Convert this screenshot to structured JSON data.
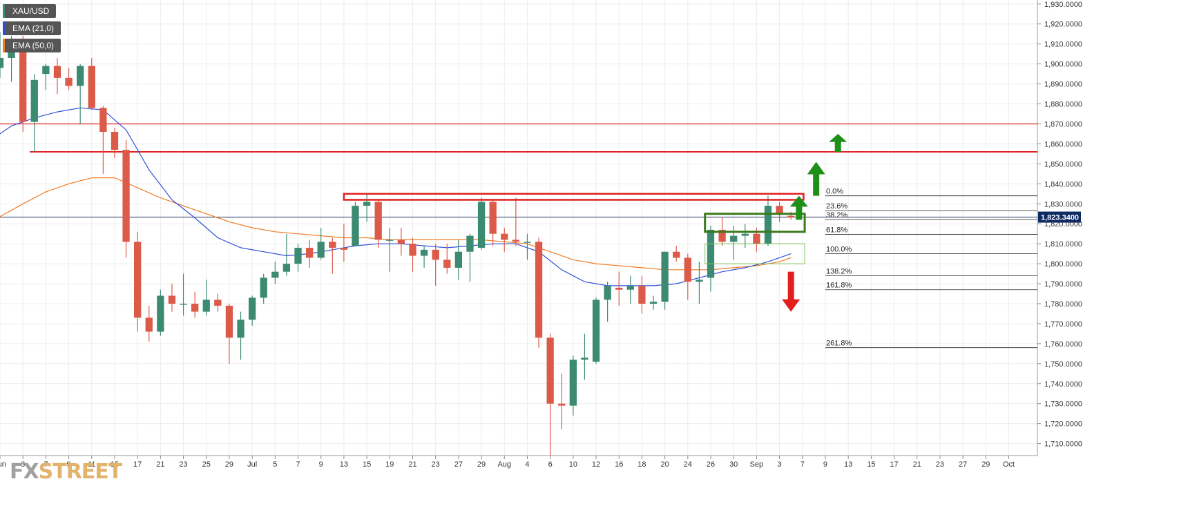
{
  "chart_data": {
    "type": "candlestick",
    "symbol": "XAU/USD",
    "indicators": [
      {
        "name": "EMA (21,0)",
        "color": "#2e4fd8"
      },
      {
        "name": "EMA (50,0)",
        "color": "#f07a22"
      }
    ],
    "ylim": [
      1704,
      1932
    ],
    "y_ticks": [
      "1,930.0000",
      "1,920.0000",
      "1,910.0000",
      "1,900.0000",
      "1,890.0000",
      "1,880.0000",
      "1,870.0000",
      "1,860.0000",
      "1,850.0000",
      "1,840.0000",
      "1,830.0000",
      "1,820.0000",
      "1,810.0000",
      "1,800.0000",
      "1,790.0000",
      "1,780.0000",
      "1,770.0000",
      "1,760.0000",
      "1,750.0000",
      "1,740.0000",
      "1,730.0000",
      "1,720.0000",
      "1,710.0000"
    ],
    "y_tick_values": [
      1930,
      1920,
      1910,
      1900,
      1890,
      1880,
      1870,
      1860,
      1850,
      1840,
      1830,
      1820,
      1810,
      1800,
      1790,
      1780,
      1770,
      1760,
      1750,
      1740,
      1730,
      1720,
      1710
    ],
    "x_tick_labels": [
      "Jun",
      "3",
      "7",
      "9",
      "11",
      "15",
      "17",
      "21",
      "23",
      "25",
      "29",
      "Jul",
      "5",
      "7",
      "9",
      "13",
      "15",
      "19",
      "21",
      "23",
      "27",
      "29",
      "Aug",
      "4",
      "6",
      "10",
      "12",
      "16",
      "18",
      "20",
      "24",
      "26",
      "30",
      "Sep",
      "3",
      "7",
      "9",
      "13",
      "15",
      "17",
      "21",
      "23",
      "27",
      "29",
      "Oct"
    ],
    "x_tick_positions": [
      0,
      2,
      4,
      6,
      8,
      10,
      12,
      14,
      16,
      18,
      20,
      22,
      24,
      26,
      28,
      30,
      32,
      34,
      36,
      38,
      40,
      42,
      44,
      46,
      48,
      50,
      52,
      54,
      56,
      58,
      60,
      62,
      64,
      66,
      68,
      70,
      72,
      74,
      76,
      78,
      80,
      82,
      84,
      86,
      88
    ],
    "x_range": [
      0,
      90.5
    ],
    "current_price": 1823.34,
    "current_price_label": "1,823.3400",
    "candles": [
      {
        "i": 0,
        "o": 1898,
        "h": 1916,
        "l": 1893,
        "c": 1903
      },
      {
        "i": 1,
        "o": 1903,
        "h": 1914,
        "l": 1891,
        "c": 1910
      },
      {
        "i": 2,
        "o": 1910,
        "h": 1914,
        "l": 1866,
        "c": 1871
      },
      {
        "i": 3,
        "o": 1871,
        "h": 1895,
        "l": 1856,
        "c": 1892
      },
      {
        "i": 4,
        "o": 1895,
        "h": 1900,
        "l": 1887,
        "c": 1899
      },
      {
        "i": 5,
        "o": 1899,
        "h": 1903,
        "l": 1885,
        "c": 1893
      },
      {
        "i": 6,
        "o": 1893,
        "h": 1898,
        "l": 1887,
        "c": 1889
      },
      {
        "i": 7,
        "o": 1889,
        "h": 1900,
        "l": 1870,
        "c": 1899
      },
      {
        "i": 8,
        "o": 1899,
        "h": 1903,
        "l": 1877,
        "c": 1878
      },
      {
        "i": 9,
        "o": 1878,
        "h": 1879,
        "l": 1845,
        "c": 1866
      },
      {
        "i": 10,
        "o": 1866,
        "h": 1868,
        "l": 1853,
        "c": 1857
      },
      {
        "i": 11,
        "o": 1857,
        "h": 1862,
        "l": 1803,
        "c": 1811
      },
      {
        "i": 12,
        "o": 1811,
        "h": 1816,
        "l": 1766,
        "c": 1773
      },
      {
        "i": 13,
        "o": 1773,
        "h": 1779,
        "l": 1761,
        "c": 1766
      },
      {
        "i": 14,
        "o": 1766,
        "h": 1787,
        "l": 1764,
        "c": 1784
      },
      {
        "i": 15,
        "o": 1784,
        "h": 1790,
        "l": 1776,
        "c": 1780
      },
      {
        "i": 16,
        "o": 1780,
        "h": 1795,
        "l": 1774,
        "c": 1780
      },
      {
        "i": 17,
        "o": 1780,
        "h": 1786,
        "l": 1773,
        "c": 1776
      },
      {
        "i": 18,
        "o": 1776,
        "h": 1792,
        "l": 1774,
        "c": 1782
      },
      {
        "i": 19,
        "o": 1782,
        "h": 1785,
        "l": 1776,
        "c": 1779
      },
      {
        "i": 20,
        "o": 1779,
        "h": 1780,
        "l": 1750,
        "c": 1763
      },
      {
        "i": 21,
        "o": 1763,
        "h": 1776,
        "l": 1752,
        "c": 1772
      },
      {
        "i": 22,
        "o": 1772,
        "h": 1784,
        "l": 1769,
        "c": 1783
      },
      {
        "i": 23,
        "o": 1783,
        "h": 1795,
        "l": 1780,
        "c": 1793
      },
      {
        "i": 24,
        "o": 1793,
        "h": 1801,
        "l": 1790,
        "c": 1796
      },
      {
        "i": 25,
        "o": 1796,
        "h": 1815,
        "l": 1794,
        "c": 1800
      },
      {
        "i": 26,
        "o": 1800,
        "h": 1810,
        "l": 1796,
        "c": 1808
      },
      {
        "i": 27,
        "o": 1808,
        "h": 1812,
        "l": 1798,
        "c": 1803
      },
      {
        "i": 28,
        "o": 1803,
        "h": 1818,
        "l": 1802,
        "c": 1811
      },
      {
        "i": 29,
        "o": 1811,
        "h": 1813,
        "l": 1795,
        "c": 1808
      },
      {
        "i": 30,
        "o": 1808,
        "h": 1820,
        "l": 1801,
        "c": 1807
      },
      {
        "i": 31,
        "o": 1809,
        "h": 1831,
        "l": 1809,
        "c": 1829
      },
      {
        "i": 32,
        "o": 1829,
        "h": 1835,
        "l": 1821,
        "c": 1831
      },
      {
        "i": 33,
        "o": 1831,
        "h": 1832,
        "l": 1808,
        "c": 1812
      },
      {
        "i": 34,
        "o": 1812,
        "h": 1818,
        "l": 1796,
        "c": 1812
      },
      {
        "i": 35,
        "o": 1812,
        "h": 1818,
        "l": 1804,
        "c": 1810
      },
      {
        "i": 36,
        "o": 1810,
        "h": 1813,
        "l": 1796,
        "c": 1804
      },
      {
        "i": 37,
        "o": 1804,
        "h": 1809,
        "l": 1798,
        "c": 1807
      },
      {
        "i": 38,
        "o": 1807,
        "h": 1810,
        "l": 1789,
        "c": 1802
      },
      {
        "i": 39,
        "o": 1802,
        "h": 1810,
        "l": 1795,
        "c": 1798
      },
      {
        "i": 40,
        "o": 1798,
        "h": 1812,
        "l": 1792,
        "c": 1806
      },
      {
        "i": 41,
        "o": 1806,
        "h": 1815,
        "l": 1791,
        "c": 1814
      },
      {
        "i": 42,
        "o": 1808,
        "h": 1833,
        "l": 1807,
        "c": 1831
      },
      {
        "i": 43,
        "o": 1831,
        "h": 1832,
        "l": 1809,
        "c": 1815
      },
      {
        "i": 44,
        "o": 1815,
        "h": 1818,
        "l": 1806,
        "c": 1812
      },
      {
        "i": 45,
        "o": 1812,
        "h": 1833,
        "l": 1809,
        "c": 1811
      },
      {
        "i": 46,
        "o": 1811,
        "h": 1815,
        "l": 1802,
        "c": 1811
      },
      {
        "i": 47,
        "o": 1811,
        "h": 1813,
        "l": 1758,
        "c": 1763
      },
      {
        "i": 48,
        "o": 1763,
        "h": 1765,
        "l": 1684,
        "c": 1730
      },
      {
        "i": 49,
        "o": 1730,
        "h": 1745,
        "l": 1717,
        "c": 1729
      },
      {
        "i": 50,
        "o": 1729,
        "h": 1754,
        "l": 1724,
        "c": 1752
      },
      {
        "i": 51,
        "o": 1752,
        "h": 1765,
        "l": 1742,
        "c": 1753
      },
      {
        "i": 52,
        "o": 1751,
        "h": 1783,
        "l": 1750,
        "c": 1782
      },
      {
        "i": 53,
        "o": 1782,
        "h": 1791,
        "l": 1771,
        "c": 1789
      },
      {
        "i": 54,
        "o": 1788,
        "h": 1796,
        "l": 1779,
        "c": 1787
      },
      {
        "i": 55,
        "o": 1787,
        "h": 1794,
        "l": 1780,
        "c": 1789
      },
      {
        "i": 56,
        "o": 1789,
        "h": 1794,
        "l": 1775,
        "c": 1780
      },
      {
        "i": 57,
        "o": 1780,
        "h": 1784,
        "l": 1777,
        "c": 1781
      },
      {
        "i": 58,
        "o": 1781,
        "h": 1806,
        "l": 1777,
        "c": 1806
      },
      {
        "i": 59,
        "o": 1806,
        "h": 1809,
        "l": 1801,
        "c": 1803
      },
      {
        "i": 60,
        "o": 1803,
        "h": 1805,
        "l": 1782,
        "c": 1791
      },
      {
        "i": 61,
        "o": 1791,
        "h": 1801,
        "l": 1780,
        "c": 1792
      },
      {
        "i": 62,
        "o": 1793,
        "h": 1819,
        "l": 1786,
        "c": 1817
      },
      {
        "i": 63,
        "o": 1817,
        "h": 1823,
        "l": 1809,
        "c": 1811
      },
      {
        "i": 64,
        "o": 1811,
        "h": 1819,
        "l": 1802,
        "c": 1814
      },
      {
        "i": 65,
        "o": 1814,
        "h": 1820,
        "l": 1808,
        "c": 1815
      },
      {
        "i": 66,
        "o": 1815,
        "h": 1818,
        "l": 1806,
        "c": 1810
      },
      {
        "i": 67,
        "o": 1810,
        "h": 1834,
        "l": 1809,
        "c": 1829
      },
      {
        "i": 68,
        "o": 1829,
        "h": 1831,
        "l": 1821,
        "c": 1825
      },
      {
        "i": 69,
        "o": 1824,
        "h": 1826,
        "l": 1822,
        "c": 1823.3
      }
    ],
    "ema21": [
      [
        -0.5,
        1863
      ],
      [
        1,
        1869
      ],
      [
        3,
        1873
      ],
      [
        5,
        1876
      ],
      [
        7,
        1878
      ],
      [
        9,
        1877
      ],
      [
        11,
        1867
      ],
      [
        13,
        1847
      ],
      [
        15,
        1832
      ],
      [
        17,
        1823
      ],
      [
        19,
        1813
      ],
      [
        21,
        1808
      ],
      [
        23,
        1806
      ],
      [
        25,
        1804
      ],
      [
        27,
        1805
      ],
      [
        29,
        1807
      ],
      [
        31,
        1809
      ],
      [
        33,
        1810
      ],
      [
        35,
        1810
      ],
      [
        37,
        1809
      ],
      [
        39,
        1808
      ],
      [
        41,
        1809
      ],
      [
        43,
        1810
      ],
      [
        45,
        1810
      ],
      [
        47,
        1806
      ],
      [
        49,
        1797
      ],
      [
        51,
        1791
      ],
      [
        53,
        1789
      ],
      [
        55,
        1789
      ],
      [
        57,
        1789
      ],
      [
        59,
        1790
      ],
      [
        61,
        1793
      ],
      [
        63,
        1796
      ],
      [
        65,
        1798
      ],
      [
        67,
        1801
      ],
      [
        69,
        1805
      ]
    ],
    "ema50": [
      [
        -0.5,
        1822
      ],
      [
        2,
        1830
      ],
      [
        4,
        1836
      ],
      [
        6,
        1840
      ],
      [
        8,
        1843
      ],
      [
        10,
        1843
      ],
      [
        12,
        1838
      ],
      [
        14,
        1833
      ],
      [
        16,
        1829
      ],
      [
        18,
        1825
      ],
      [
        20,
        1821
      ],
      [
        22,
        1818
      ],
      [
        24,
        1816
      ],
      [
        26,
        1815
      ],
      [
        28,
        1814
      ],
      [
        30,
        1813
      ],
      [
        32,
        1813
      ],
      [
        34,
        1812
      ],
      [
        36,
        1812
      ],
      [
        38,
        1812
      ],
      [
        40,
        1812
      ],
      [
        42,
        1812
      ],
      [
        44,
        1811
      ],
      [
        46,
        1810
      ],
      [
        48,
        1806
      ],
      [
        50,
        1802
      ],
      [
        52,
        1800
      ],
      [
        54,
        1799
      ],
      [
        56,
        1798
      ],
      [
        58,
        1797
      ],
      [
        60,
        1797
      ],
      [
        62,
        1797
      ],
      [
        64,
        1798
      ],
      [
        66,
        1799
      ],
      [
        68,
        1801
      ],
      [
        69,
        1803
      ]
    ],
    "hlines": [
      {
        "name": "resistance-1870",
        "y": 1870,
        "x_start": -0.5,
        "x_end": 90.5
      },
      {
        "name": "resistance-1856",
        "y": 1856,
        "x_start": 2.6,
        "x_end": 90.5
      },
      {
        "name": "price-line",
        "y": 1823.34,
        "x_start": -0.5,
        "x_end": 90.5
      }
    ],
    "resistance_rect": {
      "x1": 30,
      "x2": 70.1,
      "y1": 1835,
      "y2": 1832
    },
    "fibonacci": {
      "x_start": 72,
      "x_end": 90.5,
      "levels": [
        {
          "label": "0.0%",
          "y": 1834
        },
        {
          "label": "23.6%",
          "y": 1826.6
        },
        {
          "label": "38.2%",
          "y": 1822.1
        },
        {
          "label": "61.8%",
          "y": 1814.7
        },
        {
          "label": "100.0%",
          "y": 1805
        },
        {
          "label": "138.2%",
          "y": 1794
        },
        {
          "label": "161.8%",
          "y": 1787
        },
        {
          "label": "261.8%",
          "y": 1758
        }
      ]
    },
    "zones": [
      {
        "name": "consolidation-box",
        "x1": 61.5,
        "x2": 70.2,
        "y1": 1825,
        "y2": 1816,
        "color": "#3a7a1a",
        "width": 3
      },
      {
        "name": "support-box",
        "x1": 61.5,
        "x2": 70.2,
        "y1": 1810,
        "y2": 1800,
        "color": "#7cc35b",
        "width": 1
      }
    ],
    "arrows": [
      {
        "name": "up-arrow-1",
        "x": 69.7,
        "y_tip": 1834,
        "y_base": 1822,
        "color": "#1e8f17"
      },
      {
        "name": "up-arrow-2",
        "x": 71.2,
        "y_tip": 1851,
        "y_base": 1834,
        "color": "#1e8f17"
      },
      {
        "name": "up-arrow-3",
        "x": 73.1,
        "y_tip": 1865,
        "y_base": 1856,
        "color": "#1e8f17"
      },
      {
        "name": "down-arrow",
        "x": 69.0,
        "y_tip": 1776,
        "y_base": 1796,
        "color": "#e41d1d"
      }
    ],
    "colors": {
      "up": "#3d8a73",
      "down": "#dc5a48",
      "grid": "#ececec",
      "resistance": "#e02020",
      "price_box": "#0e2a63"
    }
  },
  "watermark": {
    "fx": "FX",
    "street": "STREET"
  }
}
